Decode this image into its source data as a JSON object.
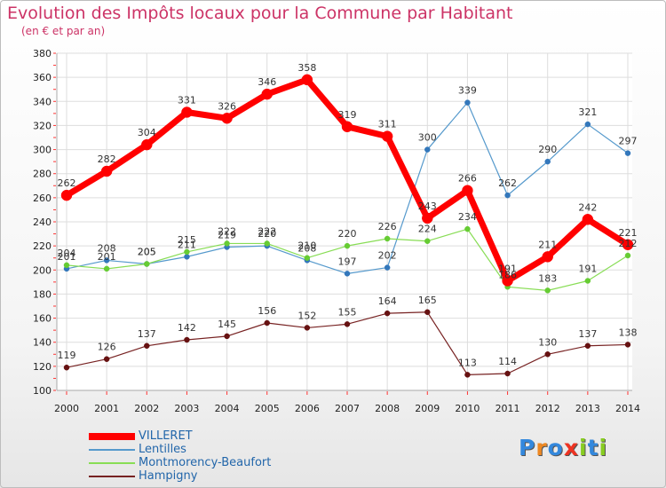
{
  "chart_data": {
    "type": "line",
    "title": "Evolution des Impôts locaux pour la Commune par Habitant",
    "subtitle": "(en € et par an)",
    "xlabel": "",
    "ylabel": "",
    "ylim": [
      100,
      380
    ],
    "yticks": [
      100,
      120,
      140,
      160,
      180,
      200,
      220,
      240,
      260,
      280,
      300,
      320,
      340,
      360,
      380
    ],
    "categories": [
      "2000",
      "2001",
      "2002",
      "2003",
      "2004",
      "2005",
      "2006",
      "2007",
      "2008",
      "2009",
      "2010",
      "2011",
      "2012",
      "2013",
      "2014"
    ],
    "grid": true,
    "legend_position": "bottom-left",
    "series": [
      {
        "name": "VILLERET",
        "color": "#ff0000",
        "values": [
          262,
          282,
          304,
          331,
          326,
          346,
          358,
          319,
          311,
          243,
          266,
          191,
          211,
          242,
          221
        ]
      },
      {
        "name": "Lentilles",
        "color": "#5599cc",
        "values": [
          201,
          208,
          205,
          211,
          219,
          220,
          208,
          197,
          202,
          300,
          339,
          262,
          290,
          321,
          297
        ]
      },
      {
        "name": "Montmorency-Beaufort",
        "color": "#88dd55",
        "values": [
          204,
          201,
          205,
          215,
          222,
          222,
          210,
          220,
          226,
          224,
          234,
          186,
          183,
          191,
          212
        ]
      },
      {
        "name": "Hampigny",
        "color": "#772222",
        "values": [
          119,
          126,
          137,
          142,
          145,
          156,
          152,
          155,
          164,
          165,
          113,
          114,
          130,
          137,
          138
        ]
      }
    ]
  },
  "logo": {
    "letters": [
      "P",
      "r",
      "o",
      "x",
      "i",
      "t",
      "i"
    ],
    "colors": [
      "#3388dd",
      "#ee8822",
      "#3388dd",
      "#ee3322",
      "#88cc22",
      "#3388dd",
      "#88cc22"
    ]
  }
}
